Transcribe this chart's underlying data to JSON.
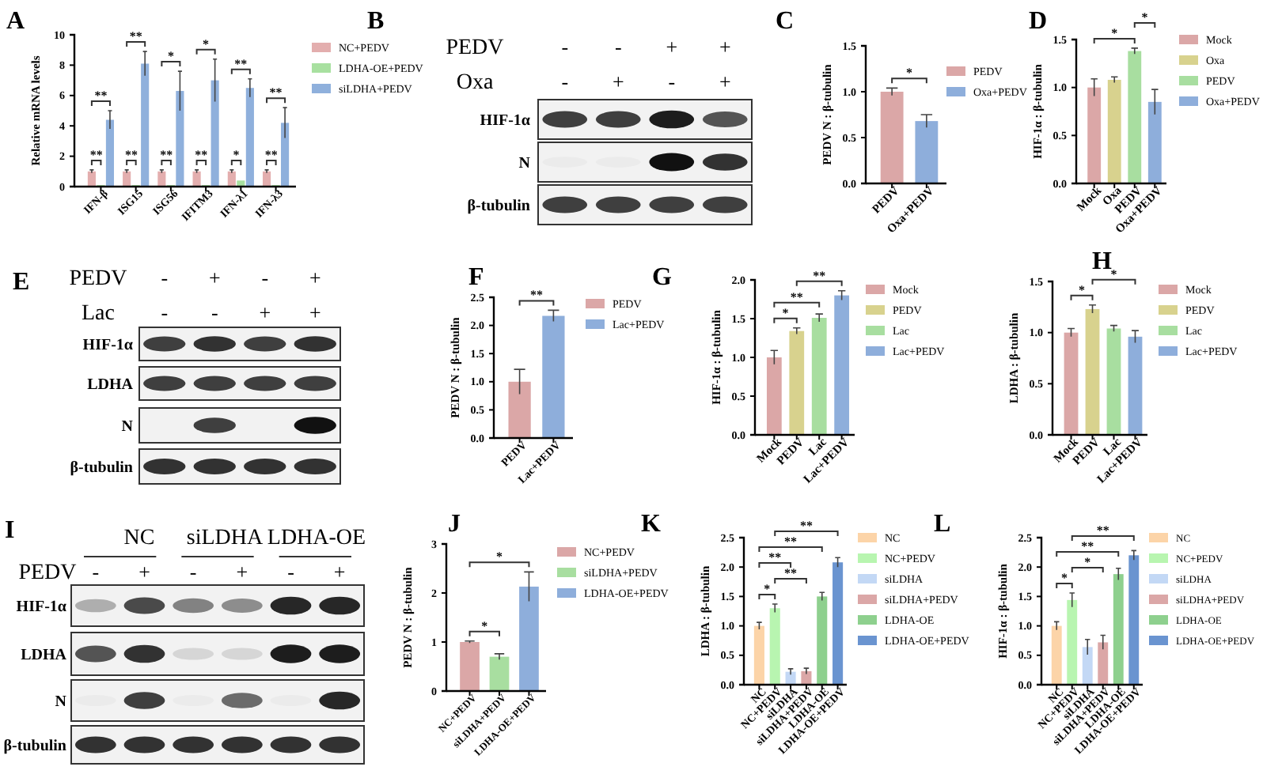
{
  "chart_data": [
    {
      "type": "bar",
      "title": "A",
      "ylabel": "Relative mRNA levels",
      "categories": [
        "IFN-β",
        "ISG15",
        "ISG56",
        "IFITM3",
        "IFN-λ1",
        "IFN-λ3"
      ],
      "series": [
        {
          "name": "NC+PEDV",
          "color": "#e3aeae",
          "values": [
            1.0,
            1.0,
            1.0,
            1.0,
            1.0,
            1.0
          ],
          "errors": [
            0.1,
            0.1,
            0.1,
            0.1,
            0.1,
            0.1
          ]
        },
        {
          "name": "LDHA-OE+PEDV",
          "color": "#a8e0a0",
          "values": [
            0.1,
            0.1,
            0.1,
            0.1,
            0.4,
            0.1
          ]
        },
        {
          "name": "siLDHA+PEDV",
          "color": "#8fb0dc",
          "values": [
            4.4,
            8.1,
            6.3,
            7.0,
            6.5,
            4.2
          ],
          "errors": [
            0.6,
            0.8,
            1.3,
            1.4,
            0.6,
            1.0
          ]
        }
      ],
      "ylim": [
        0,
        10
      ],
      "yticks": [
        0,
        2,
        4,
        6,
        8,
        10
      ],
      "legend": "right",
      "annotations": [
        "**",
        "**",
        "**",
        "**",
        "**",
        "*",
        "**",
        "*",
        "*",
        "**",
        "**",
        "**"
      ]
    },
    {
      "type": "other",
      "title": "B",
      "annotations": [
        "PEDV",
        "-",
        "-",
        "+",
        "+",
        "Oxa",
        "-",
        "+",
        "-",
        "+",
        "HIF-1α",
        "N",
        "β-tubulin"
      ]
    },
    {
      "type": "bar",
      "title": "C",
      "ylabel": "PEDV N : β-tubulin",
      "categories": [
        "PEDV",
        "Oxa+PEDV"
      ],
      "stacked": true,
      "series": [
        {
          "name": "PEDV",
          "color": "#dba7a7",
          "values": [
            1.0,
            null
          ],
          "errors": [
            0.04,
            null
          ]
        },
        {
          "name": "Oxa+PEDV",
          "color": "#8eaedb",
          "values": [
            null,
            0.68
          ],
          "errors": [
            null,
            0.07
          ]
        }
      ],
      "ylim": [
        0,
        1.5
      ],
      "yticks": [
        {
          "value": 0,
          "label": "0.0"
        },
        {
          "value": 0.5,
          "label": "0.5"
        },
        {
          "value": 1,
          "label": "1.0"
        },
        {
          "value": 1.5,
          "label": "1.5"
        }
      ],
      "legend": "right",
      "annotations": [
        "*"
      ]
    },
    {
      "type": "bar",
      "title": "D",
      "ylabel": "HIF-1α : β-tubulin",
      "categories": [
        "Mock",
        "Oxa",
        "PEDV",
        "Oxa+PEDV"
      ],
      "stacked": true,
      "series": [
        {
          "name": "Mock",
          "color": "#dba7a7",
          "values": [
            1.0,
            null,
            null,
            null
          ],
          "errors": [
            0.09,
            null,
            null,
            null
          ]
        },
        {
          "name": "Oxa",
          "color": "#d8d28e",
          "values": [
            null,
            1.08,
            null,
            null
          ],
          "errors": [
            null,
            0.03,
            null,
            null
          ]
        },
        {
          "name": "PEDV",
          "color": "#a8dea0",
          "values": [
            null,
            null,
            1.38,
            null
          ],
          "errors": [
            null,
            null,
            0.03,
            null
          ]
        },
        {
          "name": "Oxa+PEDV",
          "color": "#8eaedb",
          "values": [
            null,
            null,
            null,
            0.85
          ],
          "errors": [
            null,
            null,
            null,
            0.13
          ]
        }
      ],
      "ylim": [
        0,
        1.5
      ],
      "yticks": [
        {
          "value": 0,
          "label": "0.0"
        },
        {
          "value": 0.5,
          "label": "0.5"
        },
        {
          "value": 1,
          "label": "1.0"
        },
        {
          "value": 1.5,
          "label": "1.5"
        }
      ],
      "legend": "right",
      "annotations": [
        "*",
        "*"
      ]
    },
    {
      "type": "other",
      "title": "E",
      "annotations": [
        "PEDV",
        "-",
        "+",
        "-",
        "+",
        "Lac",
        "-",
        "-",
        "+",
        "+",
        "HIF-1α",
        "LDHA",
        "N",
        "β-tubulin"
      ]
    },
    {
      "type": "bar",
      "title": "F",
      "ylabel": "PEDV N : β-tubulin",
      "categories": [
        "PEDV",
        "Lac+PEDV"
      ],
      "stacked": true,
      "series": [
        {
          "name": "PEDV",
          "color": "#dba7a7",
          "values": [
            1.0,
            null
          ],
          "errors": [
            0.22,
            null
          ]
        },
        {
          "name": "Lac+PEDV",
          "color": "#8eaedb",
          "values": [
            null,
            2.17
          ],
          "errors": [
            null,
            0.1
          ]
        }
      ],
      "ylim": [
        0,
        2.5
      ],
      "yticks": [
        {
          "value": 0,
          "label": "0.0"
        },
        {
          "value": 0.5,
          "label": "0.5"
        },
        {
          "value": 1,
          "label": "1.0"
        },
        {
          "value": 1.5,
          "label": "1.5"
        },
        {
          "value": 2,
          "label": "2.0"
        },
        {
          "value": 2.5,
          "label": "2.5"
        }
      ],
      "legend": "right",
      "annotations": [
        "**"
      ]
    },
    {
      "type": "bar",
      "title": "G",
      "ylabel": "HIF-1α : β-tubulin",
      "categories": [
        "Mock",
        "PEDV",
        "Lac",
        "Lac+PEDV"
      ],
      "stacked": true,
      "series": [
        {
          "name": "Mock",
          "color": "#dba7a7",
          "values": [
            1.0,
            null,
            null,
            null
          ],
          "errors": [
            0.09,
            null,
            null,
            null
          ]
        },
        {
          "name": "PEDV",
          "color": "#d8d28e",
          "values": [
            null,
            1.34,
            null,
            null
          ],
          "errors": [
            null,
            0.04,
            null,
            null
          ]
        },
        {
          "name": "Lac",
          "color": "#a8dea0",
          "values": [
            null,
            null,
            1.51,
            null
          ],
          "errors": [
            null,
            null,
            0.05,
            null
          ]
        },
        {
          "name": "Lac+PEDV",
          "color": "#8eaedb",
          "values": [
            null,
            null,
            null,
            1.8
          ],
          "errors": [
            null,
            null,
            null,
            0.06
          ]
        }
      ],
      "ylim": [
        0,
        2
      ],
      "yticks": [
        {
          "value": 0,
          "label": "0.0"
        },
        {
          "value": 0.5,
          "label": "0.5"
        },
        {
          "value": 1,
          "label": "1.0"
        },
        {
          "value": 1.5,
          "label": "1.5"
        },
        {
          "value": 2,
          "label": "2.0"
        }
      ],
      "legend": "right",
      "annotations": [
        "*",
        "**",
        "**"
      ]
    },
    {
      "type": "bar",
      "title": "H",
      "ylabel": "LDHA : β-tubulin",
      "categories": [
        "Mock",
        "PEDV",
        "Lac",
        "Lac+PEDV"
      ],
      "stacked": true,
      "series": [
        {
          "name": "Mock",
          "color": "#dba7a7",
          "values": [
            1.0,
            null,
            null,
            null
          ],
          "errors": [
            0.04,
            null,
            null,
            null
          ]
        },
        {
          "name": "PEDV",
          "color": "#d8d28e",
          "values": [
            null,
            1.23,
            null,
            null
          ],
          "errors": [
            null,
            0.04,
            null,
            null
          ]
        },
        {
          "name": "Lac",
          "color": "#a8dea0",
          "values": [
            null,
            null,
            1.04,
            null
          ],
          "errors": [
            null,
            null,
            0.03,
            null
          ]
        },
        {
          "name": "Lac+PEDV",
          "color": "#8eaedb",
          "values": [
            null,
            null,
            null,
            0.96
          ],
          "errors": [
            null,
            null,
            null,
            0.06
          ]
        }
      ],
      "ylim": [
        0,
        1.5
      ],
      "yticks": [
        {
          "value": 0,
          "label": "0.0"
        },
        {
          "value": 0.5,
          "label": "0.5"
        },
        {
          "value": 1,
          "label": "1.0"
        },
        {
          "value": 1.5,
          "label": "1.5"
        }
      ],
      "legend": "right",
      "annotations": [
        "*",
        "*"
      ]
    },
    {
      "type": "other",
      "title": "I",
      "annotations": [
        "NC",
        "siLDHA",
        "LDHA-OE",
        "PEDV",
        "-",
        "+",
        "-",
        "+",
        "-",
        "+",
        "HIF-1α",
        "LDHA",
        "N",
        "β-tubulin"
      ]
    },
    {
      "type": "bar",
      "title": "J",
      "ylabel": "PEDV N : β-tubulin",
      "categories": [
        "NC+PEDV",
        "siLDHA+PEDV",
        "LDHA-OE+PEDV"
      ],
      "stacked": true,
      "series": [
        {
          "name": "NC+PEDV",
          "color": "#dba7a7",
          "values": [
            1.0,
            null,
            null
          ],
          "errors": [
            0.02,
            null,
            null
          ]
        },
        {
          "name": "siLDHA+PEDV",
          "color": "#a8dea0",
          "values": [
            null,
            0.7,
            null
          ],
          "errors": [
            null,
            0.06,
            null
          ]
        },
        {
          "name": "LDHA-OE+PEDV",
          "color": "#8eaedb",
          "values": [
            null,
            null,
            2.13
          ],
          "errors": [
            null,
            null,
            0.3
          ]
        }
      ],
      "ylim": [
        0,
        3
      ],
      "yticks": [
        0,
        1,
        2,
        3
      ],
      "legend": "right",
      "annotations": [
        "*",
        "*"
      ]
    },
    {
      "type": "bar",
      "title": "K",
      "ylabel": "LDHA : β-tubulin",
      "categories": [
        "NC",
        "NC+PEDV",
        "siLDHA",
        "siLDHA+PEDV",
        "LDHA-OE",
        "LDHA-OE+PEDV"
      ],
      "stacked": true,
      "series": [
        {
          "name": "NC",
          "color": "#fcd4a8",
          "values": [
            1.0,
            null,
            null,
            null,
            null,
            null
          ],
          "errors": [
            0.06,
            null,
            null,
            null,
            null,
            null
          ]
        },
        {
          "name": "NC+PEDV",
          "color": "#b8f5b0",
          "values": [
            null,
            1.3,
            null,
            null,
            null,
            null
          ],
          "errors": [
            null,
            0.07,
            null,
            null,
            null,
            null
          ]
        },
        {
          "name": "siLDHA",
          "color": "#c3d8f5",
          "values": [
            null,
            null,
            0.22,
            null,
            null,
            null
          ],
          "errors": [
            null,
            null,
            0.05,
            null,
            null,
            null
          ]
        },
        {
          "name": "siLDHA+PEDV",
          "color": "#dba7a7",
          "values": [
            null,
            null,
            null,
            0.23,
            null,
            null
          ],
          "errors": [
            null,
            null,
            null,
            0.05,
            null,
            null
          ]
        },
        {
          "name": "LDHA-OE",
          "color": "#8ed08e",
          "values": [
            null,
            null,
            null,
            null,
            1.5,
            null
          ],
          "errors": [
            null,
            null,
            null,
            null,
            0.07,
            null
          ]
        },
        {
          "name": "LDHA-OE+PEDV",
          "color": "#6a94d0",
          "values": [
            null,
            null,
            null,
            null,
            null,
            2.08
          ],
          "errors": [
            null,
            null,
            null,
            null,
            null,
            0.08
          ]
        }
      ],
      "ylim": [
        0,
        2.5
      ],
      "yticks": [
        {
          "value": 0,
          "label": "0.0"
        },
        {
          "value": 0.5,
          "label": "0.5"
        },
        {
          "value": 1,
          "label": "1.0"
        },
        {
          "value": 1.5,
          "label": "1.5"
        },
        {
          "value": 2,
          "label": "2.0"
        },
        {
          "value": 2.5,
          "label": "2.5"
        }
      ],
      "legend": "right",
      "annotations": [
        "*",
        "**",
        "**",
        "**",
        "**"
      ]
    },
    {
      "type": "bar",
      "title": "L",
      "ylabel": "HIF-1α : β-tubulin",
      "categories": [
        "NC",
        "NC+PEDV",
        "siLDHA",
        "siLDHA+PEDV",
        "LDHA-OE",
        "LDHA-OE+PEDV"
      ],
      "stacked": true,
      "series": [
        {
          "name": "NC",
          "color": "#fcd4a8",
          "values": [
            1.0,
            null,
            null,
            null,
            null,
            null
          ],
          "errors": [
            0.07,
            null,
            null,
            null,
            null,
            null
          ]
        },
        {
          "name": "NC+PEDV",
          "color": "#b8f5b0",
          "values": [
            null,
            1.44,
            null,
            null,
            null,
            null
          ],
          "errors": [
            null,
            0.12,
            null,
            null,
            null,
            null
          ]
        },
        {
          "name": "siLDHA",
          "color": "#c3d8f5",
          "values": [
            null,
            null,
            0.64,
            null,
            null,
            null
          ],
          "errors": [
            null,
            null,
            0.13,
            null,
            null,
            null
          ]
        },
        {
          "name": "siLDHA+PEDV",
          "color": "#dba7a7",
          "values": [
            null,
            null,
            null,
            0.72,
            null,
            null
          ],
          "errors": [
            null,
            null,
            null,
            0.12,
            null,
            null
          ]
        },
        {
          "name": "LDHA-OE",
          "color": "#8ed08e",
          "values": [
            null,
            null,
            null,
            null,
            1.88,
            null
          ],
          "errors": [
            null,
            null,
            null,
            null,
            0.1,
            null
          ]
        },
        {
          "name": "LDHA-OE+PEDV",
          "color": "#6a94d0",
          "values": [
            null,
            null,
            null,
            null,
            null,
            2.2
          ],
          "errors": [
            null,
            null,
            null,
            null,
            null,
            0.08
          ]
        }
      ],
      "ylim": [
        0,
        2.5
      ],
      "yticks": [
        {
          "value": 0,
          "label": "0.0"
        },
        {
          "value": 0.5,
          "label": "0.5"
        },
        {
          "value": 1,
          "label": "1.0"
        },
        {
          "value": 1.5,
          "label": "1.5"
        },
        {
          "value": 2,
          "label": "2.0"
        },
        {
          "value": 2.5,
          "label": "2.5"
        }
      ],
      "legend": "right",
      "annotations": [
        "*",
        "*",
        "**",
        "**"
      ]
    }
  ]
}
